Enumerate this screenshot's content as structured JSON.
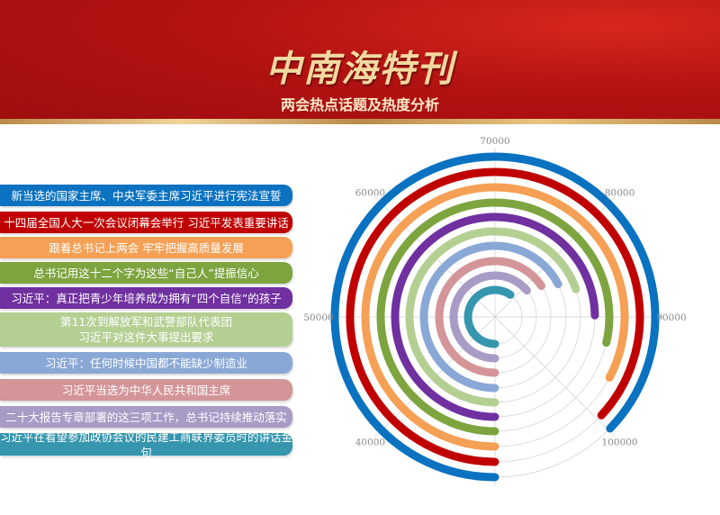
{
  "header": {
    "title": "中南海特刊",
    "subtitle": "两会热点话题及热度分析"
  },
  "chart_data": {
    "type": "radial-bar",
    "axis_min": 30000,
    "axis_max": 110000,
    "ticks": [
      40000,
      50000,
      60000,
      70000,
      80000,
      90000,
      100000
    ],
    "tick_labels": [
      "40000",
      "50000",
      "60000",
      "70000",
      "80000",
      "90000",
      "100000"
    ],
    "grid": true,
    "categories": [
      "新当选的国家主席、中央军委主席习近平进行宪法宣誓",
      "十四届全国人大一次会议闭幕会举行 习近平发表重要讲话",
      "跟着总书记上两会 牢牢把握高质量发展",
      "总书记用这十二个字为这些“自己人”提振信心",
      "习近平：真正把青少年培养成为拥有“四个自信”的孩子",
      "第11次到解放军和武警部队代表团\n习近平对这件大事提出要求",
      "习近平：任何时候中国都不能缺少制造业",
      "习近平当选为中华人民共和国主席",
      "二十大报告专章部署的这三项工作，总书记持续推动落实",
      "习近平在看望参加政协会议的民建工商联界委员时的讲话金句"
    ],
    "values": [
      99800,
      99500,
      96200,
      92900,
      89800,
      85800,
      83900,
      82500,
      81200,
      77700
    ],
    "colors": [
      "#0a72c0",
      "#c00000",
      "#f5a055",
      "#7ea43f",
      "#7030a0",
      "#b4cf92",
      "#8aa8d6",
      "#d49599",
      "#a89bc5",
      "#3596ae"
    ]
  }
}
